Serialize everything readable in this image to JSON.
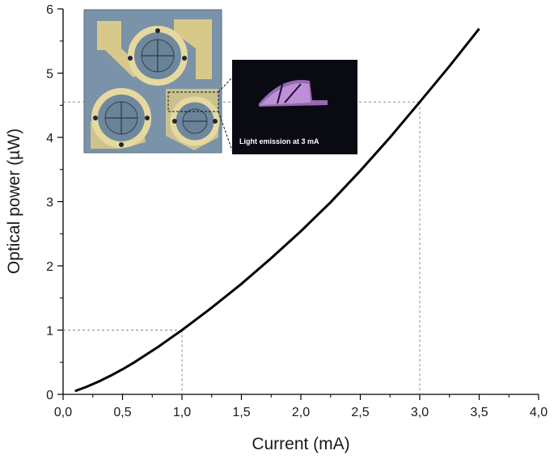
{
  "chart_data": {
    "type": "line",
    "xlabel": "Current (mA)",
    "ylabel": "Optical power (µW)",
    "xlim": [
      0,
      4
    ],
    "ylim": [
      0,
      6
    ],
    "x_ticks": [
      "0,0",
      "0,5",
      "1,0",
      "1,5",
      "2,0",
      "2,5",
      "3,0",
      "3,5",
      "4,0"
    ],
    "y_ticks": [
      "0",
      "1",
      "2",
      "3",
      "4",
      "5",
      "6"
    ],
    "grid": false,
    "series": [
      {
        "color": "#000000",
        "x": [
          0.1,
          0.2,
          0.3,
          0.4,
          0.5,
          0.6,
          0.7,
          0.8,
          0.9,
          1.0,
          1.25,
          1.5,
          1.75,
          2.0,
          2.25,
          2.5,
          2.75,
          3.0,
          3.25,
          3.5
        ],
        "y": [
          0.05,
          0.12,
          0.2,
          0.29,
          0.39,
          0.5,
          0.62,
          0.74,
          0.87,
          1.0,
          1.35,
          1.72,
          2.12,
          2.54,
          2.99,
          3.48,
          4.0,
          4.55,
          5.11,
          5.69
        ]
      }
    ],
    "reference_lines": [
      {
        "x": 1.0,
        "y": 1.0
      },
      {
        "x": 3.0,
        "y": 4.55
      }
    ],
    "insets": {
      "caption": "Light emission at 3 mA"
    }
  }
}
